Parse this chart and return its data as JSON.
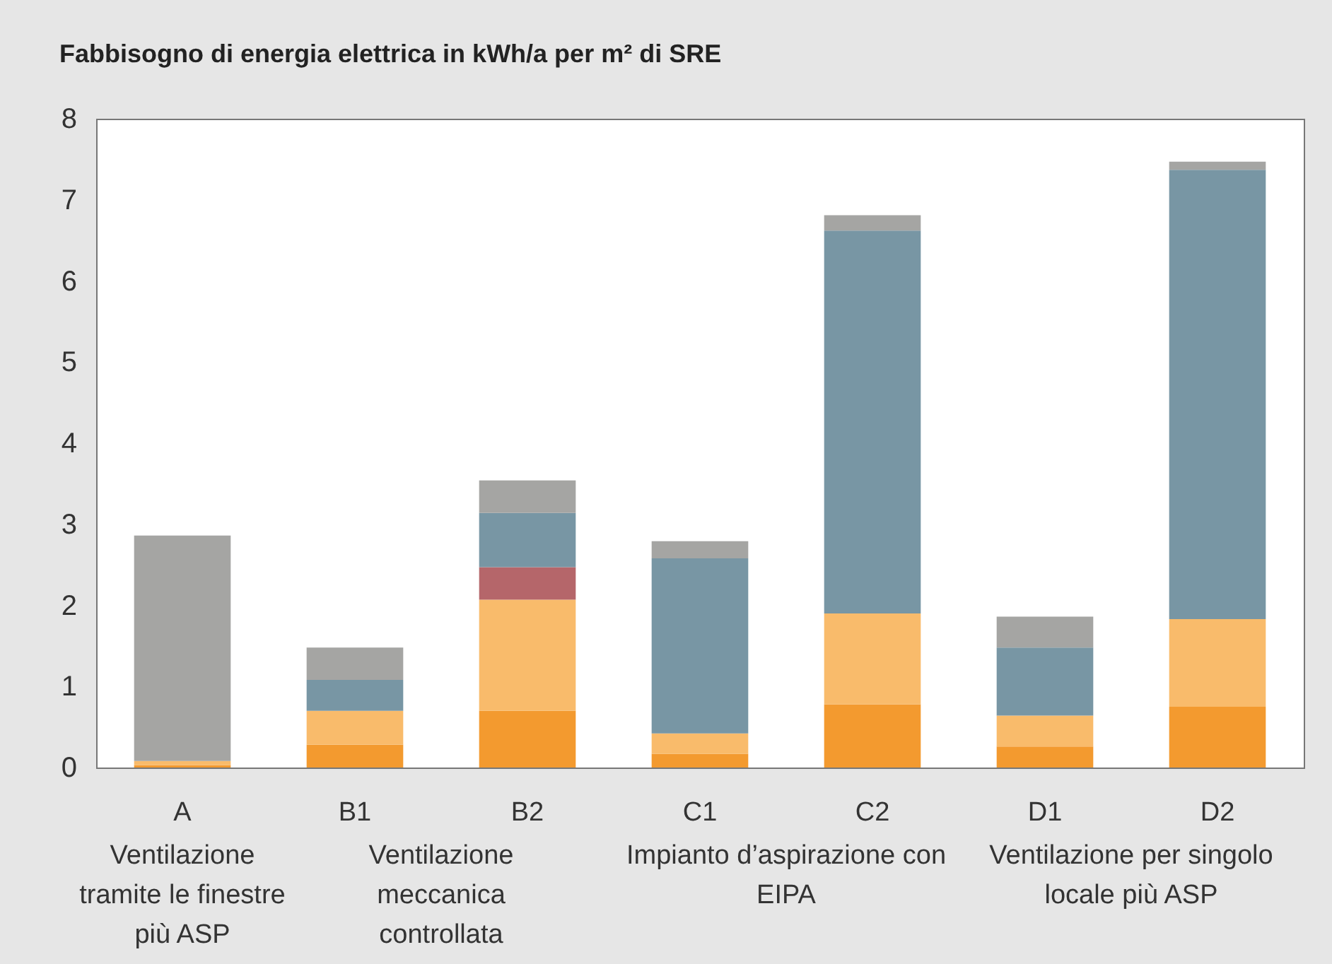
{
  "chart_data": {
    "type": "bar",
    "stacked": true,
    "title": "Fabbisogno di energia elettrica in kWh/a per m² di SRE",
    "categories": [
      "A",
      "B1",
      "B2",
      "C1",
      "C2",
      "D1",
      "D2"
    ],
    "series": [
      {
        "color": "#f39a2f",
        "values": [
          0.03,
          0.28,
          0.7,
          0.17,
          0.78,
          0.26,
          0.75
        ]
      },
      {
        "color": "#f9bb6b",
        "values": [
          0.05,
          0.42,
          1.37,
          0.25,
          1.12,
          0.38,
          1.08
        ]
      },
      {
        "color": "#b5666a",
        "values": [
          null,
          null,
          0.4,
          null,
          null,
          null,
          null
        ]
      },
      {
        "color": "#7896a4",
        "values": [
          null,
          0.38,
          0.67,
          2.16,
          4.72,
          0.84,
          5.54
        ]
      },
      {
        "color": "#a5a5a3",
        "values": [
          2.78,
          0.4,
          0.4,
          0.21,
          0.19,
          0.38,
          0.1
        ]
      }
    ],
    "ylim": [
      0,
      8
    ],
    "yticks": [
      0,
      1,
      2,
      3,
      4,
      5,
      6,
      7,
      8
    ],
    "grid": false,
    "legend": false,
    "annotations": [
      "Ventilazione tramite le finestre più ASP",
      "Ventilazione meccanica controllata",
      "Impianto d’aspirazione con EIPA",
      "Ventilazione per singolo locale più ASP"
    ]
  }
}
